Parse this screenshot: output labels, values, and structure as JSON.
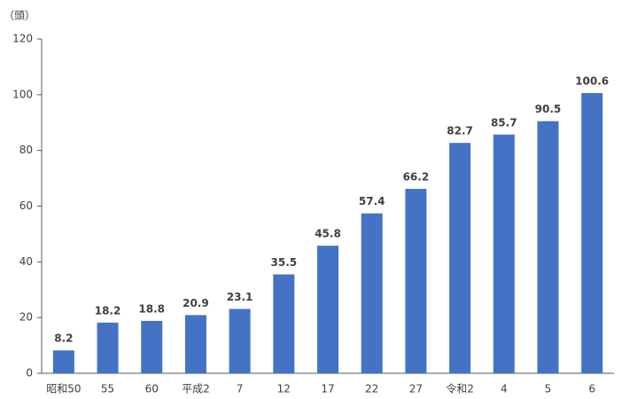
{
  "chart_data": {
    "type": "bar",
    "y_label": "（頭）",
    "categories": [
      "昭和50",
      "55",
      "60",
      "平成2",
      "7",
      "12",
      "17",
      "22",
      "27",
      "令和2",
      "4",
      "5",
      "6"
    ],
    "values": [
      8.2,
      18.2,
      18.8,
      20.9,
      23.1,
      35.5,
      45.8,
      57.4,
      66.2,
      82.7,
      85.7,
      90.5,
      100.6
    ],
    "color": "#4472c4",
    "ylim": [
      0,
      120
    ],
    "yticks": [
      0,
      20,
      40,
      60,
      80,
      100,
      120
    ],
    "grid": false
  }
}
